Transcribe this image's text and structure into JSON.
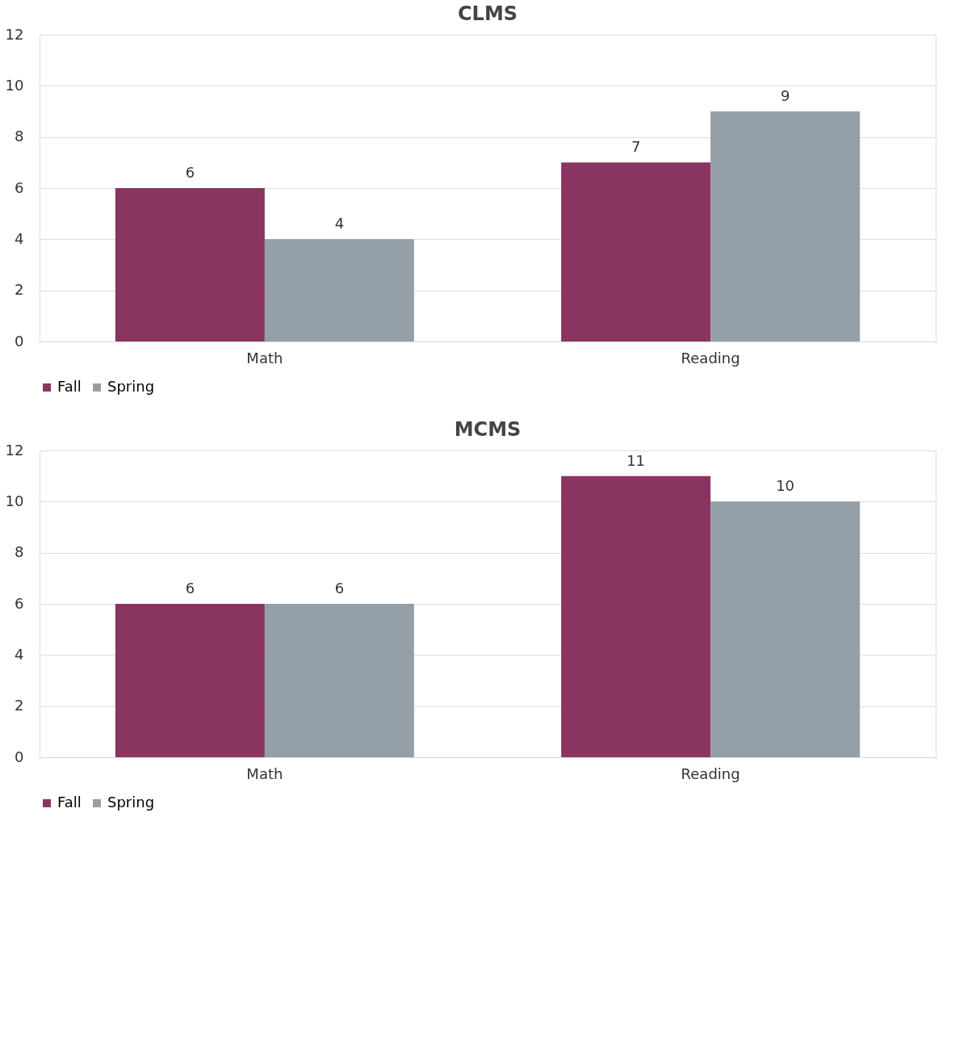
{
  "chart_data": [
    {
      "type": "bar",
      "title": "CLMS",
      "categories": [
        "Math",
        "Reading"
      ],
      "series": [
        {
          "name": "Fall",
          "color": "#8a3462",
          "values": [
            6,
            7
          ]
        },
        {
          "name": "Spring",
          "color": "#959fa8",
          "values": [
            4,
            9
          ]
        }
      ],
      "ylim": [
        0,
        12
      ],
      "yticks": [
        0,
        2,
        4,
        6,
        8,
        10,
        12
      ],
      "grid": "y",
      "legend": "bottom",
      "data_labels": true
    },
    {
      "type": "bar",
      "title": "MCMS",
      "categories": [
        "Math",
        "Reading"
      ],
      "series": [
        {
          "name": "Fall",
          "color": "#8a3462",
          "values": [
            6,
            11
          ]
        },
        {
          "name": "Spring",
          "color": "#959fa8",
          "values": [
            6,
            10
          ]
        }
      ],
      "ylim": [
        0,
        12
      ],
      "yticks": [
        0,
        2,
        4,
        6,
        8,
        10,
        12
      ],
      "grid": "y",
      "legend": "bottom",
      "data_labels": true
    }
  ]
}
